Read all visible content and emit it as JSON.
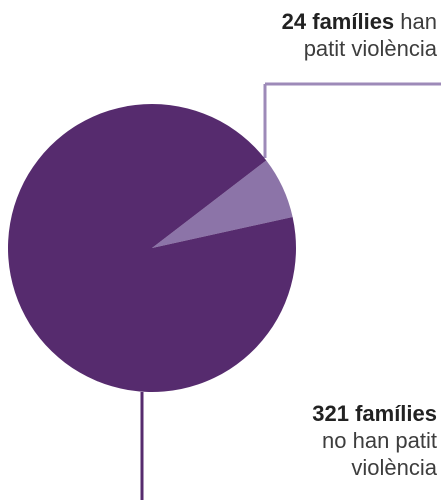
{
  "chart_data": {
    "type": "pie",
    "slices": [
      {
        "value": 24,
        "label_bold": "24 famílies",
        "label_line1_rest": " han",
        "label_line2": "patit violència",
        "color": "#8c74a8"
      },
      {
        "value": 321,
        "label_bold": "321 famílies",
        "label_line1_rest": "",
        "label_line2": "no han patit",
        "label_line3": "violència",
        "color": "#562b6e"
      }
    ],
    "connector_color": "#9d8ab8"
  }
}
